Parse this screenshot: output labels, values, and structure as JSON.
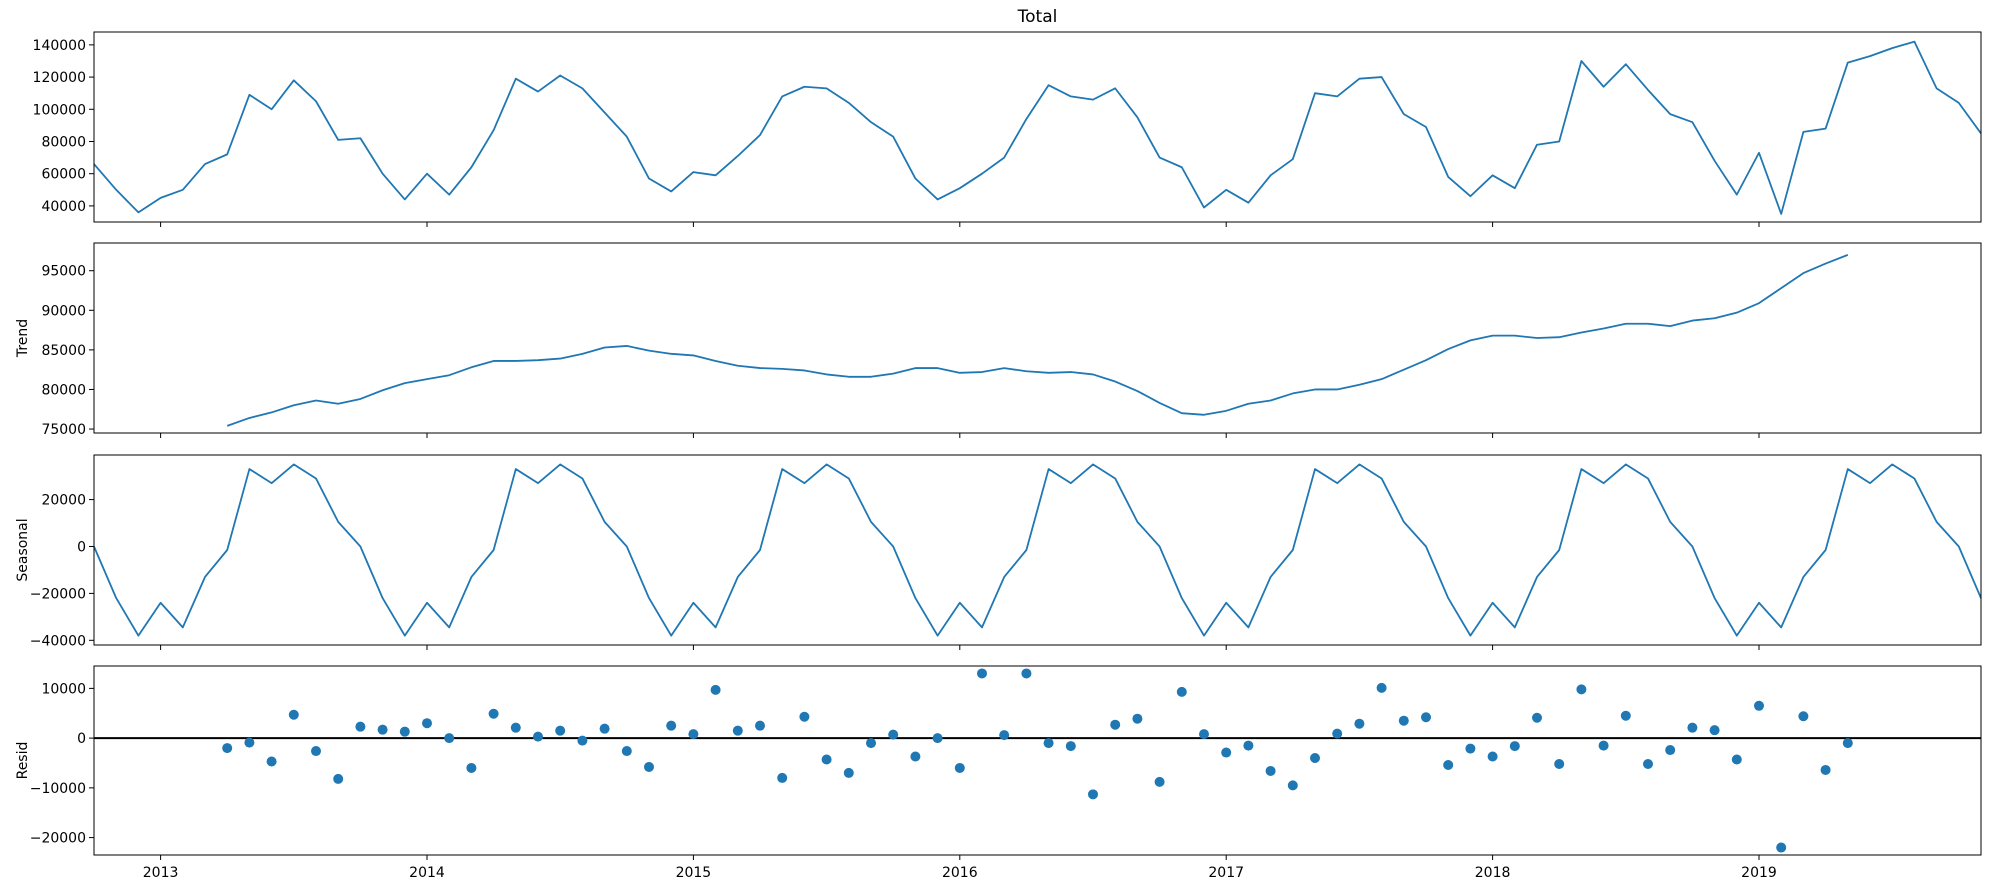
{
  "chart_data": [
    {
      "type": "line",
      "title": "Total",
      "ylabel": "",
      "ylim": [
        30000,
        148000
      ],
      "yticks": [
        40000,
        60000,
        80000,
        100000,
        120000,
        140000
      ],
      "start": "2012-10",
      "color": "#1f77b4",
      "values": [
        66000,
        50000,
        36000,
        45000,
        50000,
        66000,
        72000,
        109000,
        100000,
        118000,
        105000,
        81000,
        82000,
        60000,
        44000,
        60000,
        47000,
        64000,
        87000,
        119000,
        111000,
        121000,
        113000,
        98000,
        83000,
        57000,
        49000,
        61000,
        59000,
        71000,
        84000,
        108000,
        114000,
        113000,
        104000,
        92000,
        83000,
        57000,
        44000,
        51000,
        60000,
        70000,
        94000,
        115000,
        108000,
        106000,
        113000,
        95000,
        70000,
        64000,
        39000,
        50000,
        42000,
        59000,
        69000,
        110000,
        108000,
        119000,
        120000,
        97000,
        89000,
        58000,
        46000,
        59000,
        51000,
        78000,
        80000,
        130000,
        114000,
        128000,
        112000,
        97000,
        92000,
        68000,
        47000,
        73000,
        35000,
        86000,
        88000,
        129000,
        133000,
        138000,
        142000,
        113000,
        104000,
        85000
      ]
    },
    {
      "type": "line",
      "title": "",
      "ylabel": "Trend",
      "ylim": [
        74500,
        98500
      ],
      "yticks": [
        75000,
        80000,
        85000,
        90000,
        95000
      ],
      "start": "2013-04",
      "color": "#1f77b4",
      "values": [
        75400,
        76400,
        77100,
        78000,
        78600,
        78200,
        78800,
        79900,
        80800,
        81300,
        81800,
        82800,
        83600,
        83600,
        83700,
        83900,
        84500,
        85300,
        85500,
        84900,
        84500,
        84300,
        83600,
        83000,
        82700,
        82600,
        82400,
        81900,
        81600,
        81600,
        82000,
        82700,
        82700,
        82100,
        82200,
        82700,
        82300,
        82100,
        82200,
        81900,
        81000,
        79800,
        78300,
        77000,
        76800,
        77300,
        78200,
        78600,
        79500,
        80000,
        80000,
        80600,
        81300,
        82500,
        83700,
        85100,
        86200,
        86800,
        86800,
        86500,
        86600,
        87200,
        87700,
        88300,
        88300,
        88000,
        88700,
        89000,
        89700,
        90900,
        92800,
        94700,
        95900,
        97000
      ]
    },
    {
      "type": "line",
      "title": "",
      "ylabel": "Seasonal",
      "ylim": [
        -42000,
        39000
      ],
      "yticks": [
        -40000,
        -20000,
        0,
        20000
      ],
      "start": "2012-10",
      "color": "#1f77b4",
      "values": [
        0,
        -22000,
        -38000,
        -24000,
        -34500,
        -13000,
        -1500,
        33000,
        27000,
        35000,
        29000,
        10500,
        0,
        -22000,
        -38000,
        -24000,
        -34500,
        -13000,
        -1500,
        33000,
        27000,
        35000,
        29000,
        10500,
        0,
        -22000,
        -38000,
        -24000,
        -34500,
        -13000,
        -1500,
        33000,
        27000,
        35000,
        29000,
        10500,
        0,
        -22000,
        -38000,
        -24000,
        -34500,
        -13000,
        -1500,
        33000,
        27000,
        35000,
        29000,
        10500,
        0,
        -22000,
        -38000,
        -24000,
        -34500,
        -13000,
        -1500,
        33000,
        27000,
        35000,
        29000,
        10500,
        0,
        -22000,
        -38000,
        -24000,
        -34500,
        -13000,
        -1500,
        33000,
        27000,
        35000,
        29000,
        10500,
        0,
        -22000,
        -38000,
        -24000,
        -34500,
        -13000,
        -1500,
        33000,
        27000,
        35000,
        29000,
        10500,
        0,
        -22000
      ]
    },
    {
      "type": "scatter",
      "title": "",
      "ylabel": "Resid",
      "ylim": [
        -23500,
        14500
      ],
      "yticks": [
        -20000,
        -10000,
        0,
        10000
      ],
      "start": "2013-04",
      "color": "#1f77b4",
      "zero_line": true,
      "values": [
        -2000,
        -900,
        -4700,
        4700,
        -2600,
        -8200,
        2300,
        1700,
        1300,
        3000,
        0,
        -6000,
        4900,
        2100,
        300,
        1500,
        -500,
        1900,
        -2600,
        -5800,
        2500,
        800,
        9700,
        1500,
        2500,
        -8000,
        4300,
        -4300,
        -7000,
        -1000,
        700,
        -3700,
        0,
        -6000,
        13000,
        600,
        13000,
        -1000,
        -1600,
        -11300,
        2700,
        3900,
        -8800,
        9300,
        800,
        -2900,
        -1500,
        -6600,
        -9500,
        -4000,
        900,
        2900,
        10100,
        3500,
        4200,
        -5400,
        -2100,
        -3700,
        -1600,
        4100,
        -5200,
        9800,
        -1500,
        4500,
        -5200,
        -2400,
        2100,
        1600,
        -4300,
        6500,
        -22000,
        4400,
        -6400,
        -1000
      ]
    }
  ],
  "xaxis": {
    "start": "2012-10",
    "months": 86,
    "tick_labels": [
      "2013",
      "2014",
      "2015",
      "2016",
      "2017",
      "2018",
      "2019"
    ],
    "tick_months": [
      3,
      15,
      27,
      39,
      51,
      63,
      75
    ]
  }
}
